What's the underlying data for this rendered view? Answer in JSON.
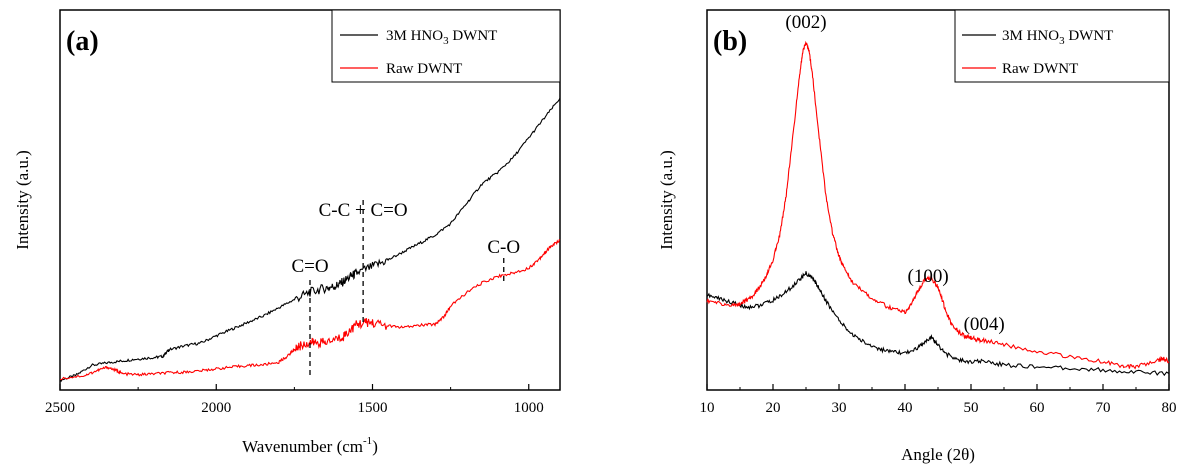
{
  "chart_data": [
    {
      "type": "line",
      "panel_label": "(a)",
      "xlabel": "Wavenumber (cm",
      "xlabel_sup": "-1",
      "xlabel_end": ")",
      "ylabel": "Intensity (a.u.)",
      "xlim": [
        2500,
        900
      ],
      "x_reversed": true,
      "ylim": [
        0,
        1
      ],
      "x_ticks": [
        2500,
        2000,
        1500,
        1000
      ],
      "x_tick_labels": [
        "2500",
        "2000",
        "1500",
        "1000"
      ],
      "legend_position": "top-right",
      "series": [
        {
          "name": "3M HNO3 DWNT",
          "name_parts": [
            "3M HNO",
            "3",
            " DWNT"
          ],
          "color": "#000000",
          "x": [
            2500,
            2450,
            2400,
            2350,
            2300,
            2250,
            2200,
            2170,
            2160,
            2150,
            2100,
            2050,
            2000,
            1950,
            1900,
            1850,
            1800,
            1750,
            1700,
            1650,
            1620,
            1600,
            1570,
            1550,
            1500,
            1450,
            1400,
            1350,
            1300,
            1250,
            1200,
            1150,
            1100,
            1050,
            1000,
            950,
            900
          ],
          "y": [
            0.005,
            0.02,
            0.05,
            0.058,
            0.064,
            0.07,
            0.074,
            0.078,
            0.09,
            0.098,
            0.11,
            0.118,
            0.14,
            0.16,
            0.18,
            0.2,
            0.225,
            0.25,
            0.272,
            0.285,
            0.29,
            0.3,
            0.32,
            0.33,
            0.35,
            0.37,
            0.395,
            0.42,
            0.445,
            0.48,
            0.54,
            0.6,
            0.635,
            0.68,
            0.74,
            0.8,
            0.86
          ]
        },
        {
          "name": "Raw DWNT",
          "color": "#ff0000",
          "x": [
            2500,
            2420,
            2380,
            2350,
            2320,
            2300,
            2250,
            2200,
            2150,
            2100,
            2050,
            2000,
            1950,
            1900,
            1850,
            1800,
            1770,
            1750,
            1730,
            1700,
            1680,
            1650,
            1600,
            1580,
            1550,
            1520,
            1500,
            1450,
            1400,
            1350,
            1300,
            1270,
            1250,
            1200,
            1150,
            1100,
            1050,
            1000,
            970,
            950,
            930,
            900
          ],
          "y": [
            0.01,
            0.02,
            0.035,
            0.045,
            0.035,
            0.025,
            0.022,
            0.025,
            0.028,
            0.03,
            0.034,
            0.04,
            0.045,
            0.05,
            0.052,
            0.06,
            0.08,
            0.1,
            0.11,
            0.12,
            0.12,
            0.12,
            0.135,
            0.15,
            0.175,
            0.18,
            0.18,
            0.17,
            0.165,
            0.172,
            0.175,
            0.2,
            0.23,
            0.27,
            0.3,
            0.32,
            0.33,
            0.345,
            0.37,
            0.39,
            0.41,
            0.43
          ]
        }
      ],
      "annotations": [
        {
          "text": "C=O",
          "x": 1700
        },
        {
          "text": "C-C + C=O",
          "x": 1530
        },
        {
          "text": "C-O",
          "x": 1080
        }
      ]
    },
    {
      "type": "line",
      "panel_label": "(b)",
      "xlabel": "Angle (2θ)",
      "ylabel": "Intensity (a.u.)",
      "xlim": [
        10,
        80
      ],
      "ylim": [
        0,
        1
      ],
      "x_ticks": [
        10,
        20,
        30,
        40,
        50,
        60,
        70,
        80
      ],
      "x_tick_labels": [
        "10",
        "20",
        "30",
        "40",
        "50",
        "60",
        "70",
        "80"
      ],
      "legend_position": "top-right",
      "series": [
        {
          "name": "3M HNO3 DWNT",
          "name_parts": [
            "3M HNO",
            "3",
            " DWNT"
          ],
          "color": "#000000",
          "x": [
            10,
            12,
            14,
            16,
            18,
            20,
            22,
            24,
            25,
            26,
            27,
            28,
            30,
            32,
            34,
            36,
            38,
            40,
            42,
            43,
            44,
            45,
            46,
            48,
            50,
            52,
            55,
            60,
            65,
            70,
            75,
            80
          ],
          "y": [
            0.255,
            0.245,
            0.232,
            0.22,
            0.225,
            0.24,
            0.265,
            0.3,
            0.32,
            0.305,
            0.275,
            0.24,
            0.18,
            0.14,
            0.115,
            0.098,
            0.087,
            0.085,
            0.1,
            0.12,
            0.13,
            0.11,
            0.085,
            0.065,
            0.058,
            0.062,
            0.05,
            0.045,
            0.04,
            0.035,
            0.03,
            0.025
          ]
        },
        {
          "name": "Raw DWNT",
          "color": "#ff0000",
          "x": [
            10,
            12,
            14,
            15,
            16,
            17,
            18,
            19,
            20,
            21,
            22,
            23,
            24,
            24.5,
            25,
            25.5,
            26,
            27,
            28,
            29,
            30,
            31,
            32,
            34,
            36,
            38,
            40,
            41,
            42,
            43,
            44,
            45,
            46,
            47,
            48,
            49,
            50,
            51,
            52,
            55,
            60,
            65,
            70,
            73,
            75,
            78,
            79,
            80
          ],
          "y": [
            0.24,
            0.23,
            0.225,
            0.23,
            0.24,
            0.255,
            0.28,
            0.31,
            0.36,
            0.43,
            0.55,
            0.72,
            0.9,
            0.97,
            1.0,
            0.97,
            0.9,
            0.72,
            0.55,
            0.44,
            0.37,
            0.325,
            0.295,
            0.26,
            0.235,
            0.215,
            0.205,
            0.23,
            0.27,
            0.3,
            0.305,
            0.28,
            0.22,
            0.17,
            0.15,
            0.135,
            0.13,
            0.125,
            0.122,
            0.11,
            0.09,
            0.075,
            0.06,
            0.045,
            0.045,
            0.06,
            0.07,
            0.06
          ]
        }
      ],
      "annotations": [
        {
          "text": "(002)",
          "x": 25
        },
        {
          "text": "(100)",
          "x": 43.5
        },
        {
          "text": "(004)",
          "x": 52
        }
      ]
    }
  ]
}
